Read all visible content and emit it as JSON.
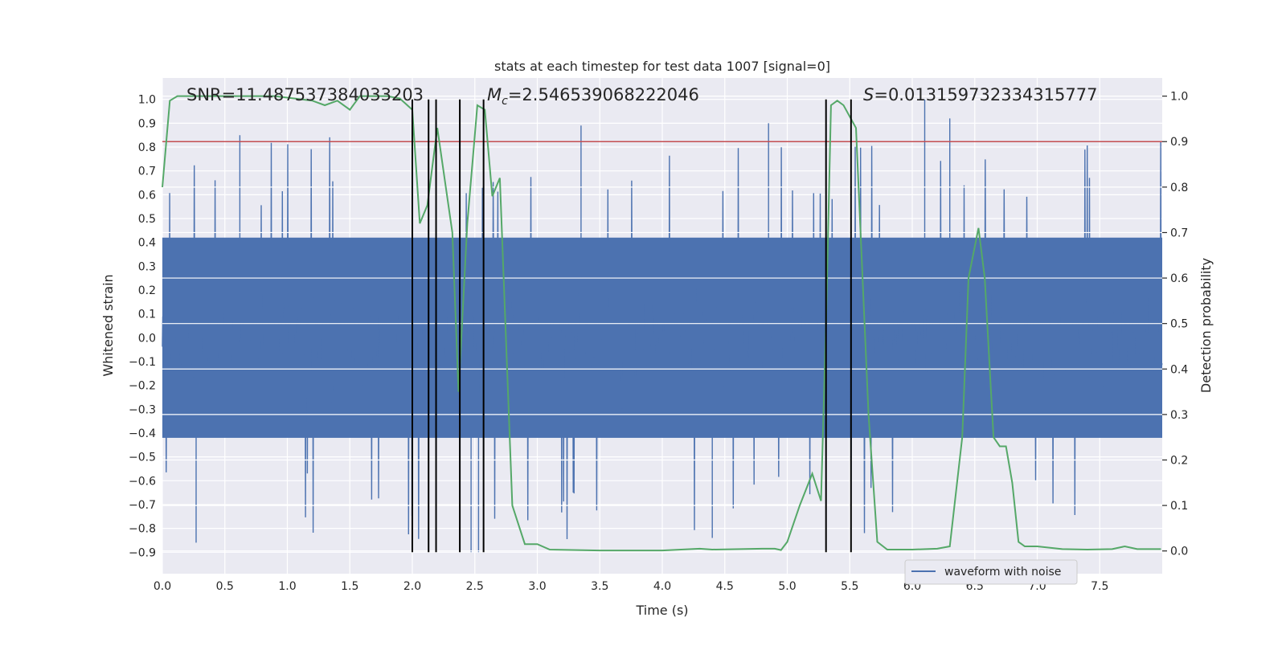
{
  "chart_data": {
    "type": "line",
    "title": "stats at each timestep for test data 1007 [signal=0]",
    "xlabel": "Time (s)",
    "ylabel_left": "Whitened strain",
    "ylabel_right": "Detection probability",
    "xlim": [
      0.0,
      8.0
    ],
    "ylim_left": [
      -0.99,
      1.09
    ],
    "ylim_right": [
      -0.05,
      1.04
    ],
    "x_ticks": [
      "0.0",
      "0.5",
      "1.0",
      "1.5",
      "2.0",
      "2.5",
      "3.0",
      "3.5",
      "4.0",
      "4.5",
      "5.0",
      "5.5",
      "6.0",
      "6.5",
      "7.0",
      "7.5"
    ],
    "y_ticks_left": [
      "1.0",
      "0.9",
      "0.8",
      "0.7",
      "0.6",
      "0.5",
      "0.4",
      "0.3",
      "0.2",
      "0.1",
      "0.0",
      "−0.1",
      "−0.2",
      "−0.3",
      "−0.4",
      "−0.5",
      "−0.6",
      "−0.7",
      "−0.8",
      "−0.9"
    ],
    "y_ticks_right": [
      "1.0",
      "0.9",
      "0.8",
      "0.7",
      "0.6",
      "0.5",
      "0.4",
      "0.3",
      "0.2",
      "0.1",
      "0.0"
    ],
    "grid": true,
    "legend": {
      "entries": [
        "waveform with noise"
      ],
      "placement": "lower-right"
    },
    "annotations": {
      "snr": "SNR=11.487537384033203",
      "mc_symbol": "M",
      "mc_sub": "c",
      "mc_value": "=2.546539068222046",
      "s_symbol": "S",
      "s_value": "=0.013159732334315777"
    },
    "threshold": {
      "value": 0.9,
      "axis": "right",
      "color": "#c44e52"
    },
    "vertical_markers": [
      2.0,
      2.13,
      2.19,
      2.38,
      2.57,
      5.31,
      5.51
    ],
    "series": [
      {
        "name": "waveform with noise",
        "axis": "left",
        "color": "#4c72b0",
        "style": "noise",
        "envelope_core": 0.42,
        "notable_peaks": [
          {
            "x": 0.62,
            "y": 0.85
          },
          {
            "x": 3.35,
            "y": 0.89
          },
          {
            "x": 4.85,
            "y": 0.9
          },
          {
            "x": 6.1,
            "y": 1.0
          },
          {
            "x": 6.3,
            "y": 0.92
          },
          {
            "x": 0.27,
            "y": -0.86
          },
          {
            "x": 4.4,
            "y": -0.84
          },
          {
            "x": 2.47,
            "y": -0.9
          },
          {
            "x": 2.53,
            "y": -0.9
          }
        ]
      },
      {
        "name": "",
        "axis": "right",
        "color": "#55a868",
        "x": [
          0.0,
          0.06,
          0.12,
          0.3,
          0.6,
          0.9,
          1.2,
          1.3,
          1.4,
          1.5,
          1.58,
          1.65,
          1.8,
          1.9,
          2.0,
          2.06,
          2.12,
          2.2,
          2.32,
          2.37,
          2.44,
          2.52,
          2.58,
          2.64,
          2.7,
          2.8,
          2.9,
          3.0,
          3.1,
          3.5,
          4.0,
          4.3,
          4.4,
          4.8,
          4.9,
          4.95,
          5.0,
          5.1,
          5.2,
          5.27,
          5.31,
          5.35,
          5.4,
          5.45,
          5.55,
          5.65,
          5.72,
          5.8,
          6.0,
          6.2,
          6.3,
          6.4,
          6.45,
          6.53,
          6.58,
          6.65,
          6.7,
          6.75,
          6.8,
          6.85,
          6.9,
          7.0,
          7.2,
          7.4,
          7.6,
          7.7,
          7.8,
          7.99
        ],
        "values": [
          0.8,
          0.99,
          1.0,
          1.0,
          1.0,
          1.0,
          0.99,
          0.98,
          0.99,
          0.97,
          1.0,
          1.0,
          1.0,
          0.995,
          0.97,
          0.72,
          0.76,
          0.93,
          0.7,
          0.35,
          0.72,
          0.98,
          0.97,
          0.78,
          0.82,
          0.1,
          0.015,
          0.015,
          0.003,
          0.001,
          0.001,
          0.005,
          0.003,
          0.005,
          0.005,
          0.002,
          0.02,
          0.1,
          0.17,
          0.11,
          0.5,
          0.98,
          0.99,
          0.98,
          0.93,
          0.3,
          0.02,
          0.003,
          0.003,
          0.005,
          0.01,
          0.25,
          0.6,
          0.71,
          0.6,
          0.25,
          0.23,
          0.23,
          0.15,
          0.02,
          0.01,
          0.01,
          0.004,
          0.003,
          0.004,
          0.01,
          0.004,
          0.004
        ]
      }
    ]
  }
}
